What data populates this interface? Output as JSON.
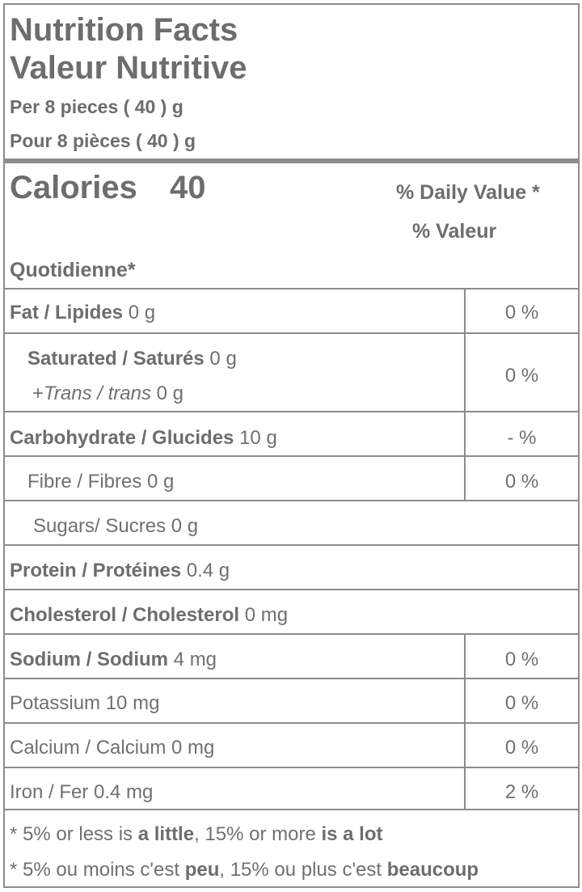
{
  "header": {
    "title_en": "Nutrition Facts",
    "title_fr": "Valeur Nutritive",
    "serving_en": "Per 8 pieces ( 40 ) g",
    "serving_fr": "Pour 8 pièces ( 40 ) g"
  },
  "calories": {
    "label": "Calories",
    "value": "40",
    "dv_line1": "% Daily Value *",
    "dv_line2": "% Valeur",
    "dv_line3": "Quotidienne*"
  },
  "nutrients": [
    {
      "name": "Fat / Lipides",
      "amount": "0 g",
      "dv": "0 %"
    },
    {
      "name": "Saturated / Saturés",
      "amount": "0 g",
      "sub_prefix": "+",
      "sub_name": "Trans / trans",
      "sub_amount": "0 g",
      "dv": "0 %"
    },
    {
      "name": "Carbohydrate / Glucides",
      "amount": "10 g",
      "dv": "- %"
    },
    {
      "name": "Fibre / Fibres 0 g",
      "dv": "0 %"
    },
    {
      "name": "Sugars/ Sucres 0 g"
    },
    {
      "name": "Protein / Protéines",
      "amount": "0.4 g"
    },
    {
      "name": "Cholesterol / Cholesterol",
      "amount": "0 mg"
    },
    {
      "name": "Sodium / Sodium",
      "amount": "4 mg",
      "dv": "0 %"
    },
    {
      "name": "Potassium 10 mg",
      "dv": "0 %"
    },
    {
      "name": "Calcium / Calcium 0 mg",
      "dv": "0 %"
    },
    {
      "name": "Iron / Fer 0.4 mg",
      "dv": "2 %"
    }
  ],
  "footer": {
    "line1_a": "* 5% or less is ",
    "line1_b": "a little",
    "line1_c": ", 15% or more ",
    "line1_d": "is a lot",
    "line2_a": "* 5% ou moins c'est ",
    "line2_b": "peu",
    "line2_c": ", 15% ou plus c'est ",
    "line2_d": "beaucoup"
  }
}
